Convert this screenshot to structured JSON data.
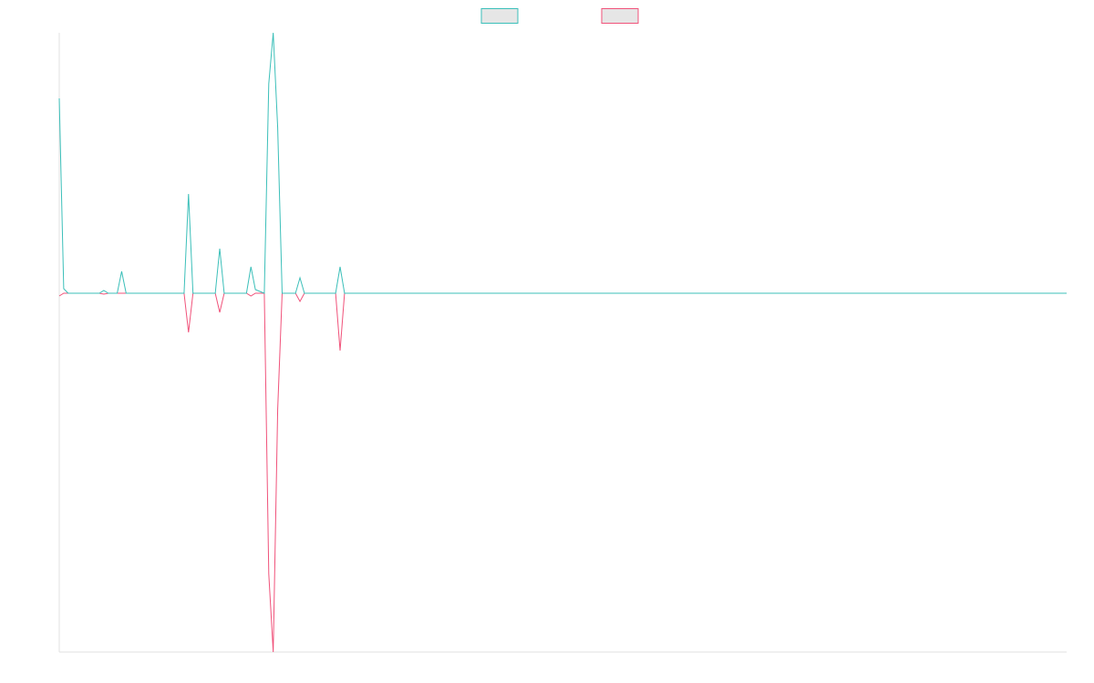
{
  "chart_data": {
    "type": "line",
    "x": [
      0,
      1,
      2,
      3,
      4,
      5,
      6,
      7,
      8,
      9,
      10,
      11,
      12,
      13,
      14,
      15,
      16,
      17,
      18,
      19,
      20,
      21,
      22,
      23,
      24,
      25,
      26,
      27,
      28,
      29,
      30,
      31,
      32,
      33,
      34,
      35,
      36,
      37,
      38,
      39,
      40,
      41,
      42,
      43,
      44,
      45,
      46,
      47,
      48,
      49,
      50,
      51,
      52,
      53,
      54,
      55,
      56,
      57,
      58,
      59,
      60,
      61,
      62,
      63,
      64,
      65,
      66,
      226
    ],
    "series": [
      {
        "color": "#3bbfb9",
        "values": [
          214,
          5,
          0,
          0,
          0,
          0,
          0,
          0,
          0,
          0,
          3,
          0,
          0,
          0,
          24,
          0,
          0,
          0,
          0,
          0,
          0,
          0,
          0,
          0,
          0,
          0,
          0,
          0,
          0,
          109,
          0,
          0,
          0,
          0,
          0,
          0,
          49,
          0,
          0,
          0,
          0,
          0,
          0,
          29,
          4,
          2,
          0,
          230,
          286,
          182,
          0,
          0,
          0,
          0,
          17,
          0,
          0,
          0,
          0,
          0,
          0,
          0,
          0,
          29,
          0,
          0,
          0,
          0
        ]
      },
      {
        "color": "#f0527a",
        "values": [
          -3,
          0,
          0,
          0,
          0,
          0,
          0,
          0,
          0,
          0,
          -1,
          0,
          0,
          0,
          0,
          0,
          0,
          0,
          0,
          0,
          0,
          0,
          0,
          0,
          0,
          0,
          0,
          0,
          0,
          -43,
          0,
          0,
          0,
          0,
          0,
          0,
          -21,
          0,
          0,
          0,
          0,
          0,
          0,
          -3,
          0,
          0,
          0,
          -308,
          -394,
          -128,
          0,
          0,
          0,
          0,
          -9,
          0,
          0,
          0,
          0,
          0,
          0,
          0,
          0,
          -63,
          0,
          0,
          0,
          0
        ]
      }
    ],
    "xlim": [
      0,
      226
    ],
    "ylim": [
      -394,
      286
    ],
    "legend": "top"
  }
}
